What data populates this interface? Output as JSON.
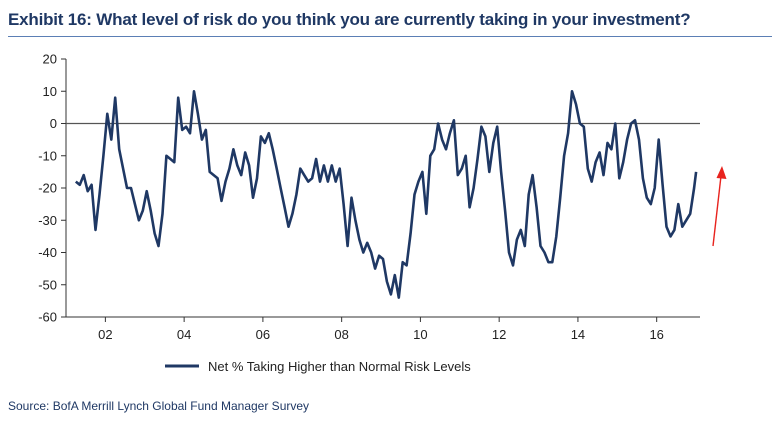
{
  "exhibit_title": "Exhibit 16: What level of risk do you think you are currently taking in your investment?",
  "source": "Source: BofA Merrill Lynch Global Fund Manager Survey",
  "colors": {
    "series": "#1f3864",
    "arrow": "#e8231e",
    "zero_line": "#555555",
    "title": "#1f3864"
  },
  "chart_data": {
    "type": "line",
    "title": "",
    "xlabel": "",
    "ylabel": "",
    "ylim": [
      -60,
      20
    ],
    "yticks": [
      20,
      10,
      0,
      -10,
      -20,
      -30,
      -40,
      -50,
      -60
    ],
    "xlim": [
      2001.0,
      2017.1
    ],
    "xticks": [
      {
        "value": 2002,
        "label": "02"
      },
      {
        "value": 2004,
        "label": "04"
      },
      {
        "value": 2006,
        "label": "06"
      },
      {
        "value": 2008,
        "label": "08"
      },
      {
        "value": 2010,
        "label": "10"
      },
      {
        "value": 2012,
        "label": "12"
      },
      {
        "value": 2014,
        "label": "14"
      },
      {
        "value": 2016,
        "label": "16"
      }
    ],
    "zero_line": 0,
    "legend": {
      "position": "bottom",
      "label": "Net % Taking Higher than Normal Risk Levels"
    },
    "annotation": "red upward arrow beside latest reading",
    "series": [
      {
        "name": "Net % Taking Higher than Normal Risk Levels",
        "points": [
          [
            2001.25,
            -18
          ],
          [
            2001.35,
            -19
          ],
          [
            2001.45,
            -16
          ],
          [
            2001.55,
            -21
          ],
          [
            2001.65,
            -19
          ],
          [
            2001.75,
            -33
          ],
          [
            2001.85,
            -22
          ],
          [
            2001.95,
            -10
          ],
          [
            2002.05,
            3
          ],
          [
            2002.15,
            -5
          ],
          [
            2002.25,
            8
          ],
          [
            2002.35,
            -8
          ],
          [
            2002.45,
            -14
          ],
          [
            2002.55,
            -20
          ],
          [
            2002.65,
            -20
          ],
          [
            2002.75,
            -25
          ],
          [
            2002.85,
            -30
          ],
          [
            2002.95,
            -27
          ],
          [
            2003.05,
            -21
          ],
          [
            2003.15,
            -27
          ],
          [
            2003.25,
            -34
          ],
          [
            2003.35,
            -38
          ],
          [
            2003.45,
            -28
          ],
          [
            2003.55,
            -10
          ],
          [
            2003.65,
            -11
          ],
          [
            2003.75,
            -12
          ],
          [
            2003.85,
            8
          ],
          [
            2003.95,
            -2
          ],
          [
            2004.05,
            -1
          ],
          [
            2004.15,
            -3
          ],
          [
            2004.25,
            10
          ],
          [
            2004.35,
            3
          ],
          [
            2004.45,
            -5
          ],
          [
            2004.55,
            -2
          ],
          [
            2004.65,
            -15
          ],
          [
            2004.75,
            -16
          ],
          [
            2004.85,
            -17
          ],
          [
            2004.95,
            -24
          ],
          [
            2005.05,
            -18
          ],
          [
            2005.15,
            -14
          ],
          [
            2005.25,
            -8
          ],
          [
            2005.35,
            -13
          ],
          [
            2005.45,
            -16
          ],
          [
            2005.55,
            -9
          ],
          [
            2005.65,
            -13
          ],
          [
            2005.75,
            -23
          ],
          [
            2005.85,
            -17
          ],
          [
            2005.95,
            -4
          ],
          [
            2006.05,
            -6
          ],
          [
            2006.15,
            -3
          ],
          [
            2006.25,
            -8
          ],
          [
            2006.35,
            -14
          ],
          [
            2006.45,
            -20
          ],
          [
            2006.55,
            -26
          ],
          [
            2006.65,
            -32
          ],
          [
            2006.75,
            -28
          ],
          [
            2006.85,
            -22
          ],
          [
            2006.95,
            -14
          ],
          [
            2007.05,
            -16
          ],
          [
            2007.15,
            -18
          ],
          [
            2007.25,
            -17
          ],
          [
            2007.35,
            -11
          ],
          [
            2007.45,
            -18
          ],
          [
            2007.55,
            -13
          ],
          [
            2007.65,
            -18
          ],
          [
            2007.75,
            -13
          ],
          [
            2007.85,
            -18
          ],
          [
            2007.95,
            -14
          ],
          [
            2008.05,
            -25
          ],
          [
            2008.15,
            -38
          ],
          [
            2008.25,
            -23
          ],
          [
            2008.35,
            -30
          ],
          [
            2008.45,
            -36
          ],
          [
            2008.55,
            -40
          ],
          [
            2008.65,
            -37
          ],
          [
            2008.75,
            -40
          ],
          [
            2008.85,
            -45
          ],
          [
            2008.95,
            -41
          ],
          [
            2009.05,
            -42
          ],
          [
            2009.15,
            -49
          ],
          [
            2009.25,
            -53
          ],
          [
            2009.35,
            -47
          ],
          [
            2009.45,
            -54
          ],
          [
            2009.55,
            -43
          ],
          [
            2009.65,
            -44
          ],
          [
            2009.75,
            -34
          ],
          [
            2009.85,
            -22
          ],
          [
            2009.95,
            -18
          ],
          [
            2010.05,
            -15
          ],
          [
            2010.15,
            -28
          ],
          [
            2010.25,
            -10
          ],
          [
            2010.35,
            -8
          ],
          [
            2010.45,
            0
          ],
          [
            2010.55,
            -5
          ],
          [
            2010.65,
            -8
          ],
          [
            2010.75,
            -3
          ],
          [
            2010.85,
            1
          ],
          [
            2010.95,
            -16
          ],
          [
            2011.05,
            -14
          ],
          [
            2011.15,
            -10
          ],
          [
            2011.25,
            -26
          ],
          [
            2011.35,
            -20
          ],
          [
            2011.45,
            -11
          ],
          [
            2011.55,
            -1
          ],
          [
            2011.65,
            -4
          ],
          [
            2011.75,
            -15
          ],
          [
            2011.85,
            -6
          ],
          [
            2011.95,
            -1
          ],
          [
            2012.05,
            -15
          ],
          [
            2012.15,
            -27
          ],
          [
            2012.25,
            -40
          ],
          [
            2012.35,
            -44
          ],
          [
            2012.45,
            -36
          ],
          [
            2012.55,
            -33
          ],
          [
            2012.65,
            -38
          ],
          [
            2012.75,
            -22
          ],
          [
            2012.85,
            -16
          ],
          [
            2012.95,
            -26
          ],
          [
            2013.05,
            -38
          ],
          [
            2013.15,
            -40
          ],
          [
            2013.25,
            -43
          ],
          [
            2013.35,
            -43
          ],
          [
            2013.45,
            -35
          ],
          [
            2013.55,
            -23
          ],
          [
            2013.65,
            -10
          ],
          [
            2013.75,
            -3
          ],
          [
            2013.85,
            10
          ],
          [
            2013.95,
            6
          ],
          [
            2014.05,
            0
          ],
          [
            2014.15,
            -1
          ],
          [
            2014.25,
            -14
          ],
          [
            2014.35,
            -18
          ],
          [
            2014.45,
            -12
          ],
          [
            2014.55,
            -9
          ],
          [
            2014.65,
            -16
          ],
          [
            2014.75,
            -6
          ],
          [
            2014.85,
            -8
          ],
          [
            2014.95,
            0
          ],
          [
            2015.05,
            -17
          ],
          [
            2015.15,
            -12
          ],
          [
            2015.25,
            -5
          ],
          [
            2015.35,
            0
          ],
          [
            2015.45,
            1
          ],
          [
            2015.55,
            -5
          ],
          [
            2015.65,
            -17
          ],
          [
            2015.75,
            -23
          ],
          [
            2015.85,
            -25
          ],
          [
            2015.95,
            -20
          ],
          [
            2016.05,
            -5
          ],
          [
            2016.15,
            -19
          ],
          [
            2016.25,
            -32
          ],
          [
            2016.35,
            -35
          ],
          [
            2016.45,
            -33
          ],
          [
            2016.55,
            -25
          ],
          [
            2016.65,
            -32
          ],
          [
            2016.75,
            -30
          ],
          [
            2016.85,
            -28
          ],
          [
            2016.95,
            -20
          ],
          [
            2017.0,
            -15
          ]
        ]
      }
    ]
  }
}
